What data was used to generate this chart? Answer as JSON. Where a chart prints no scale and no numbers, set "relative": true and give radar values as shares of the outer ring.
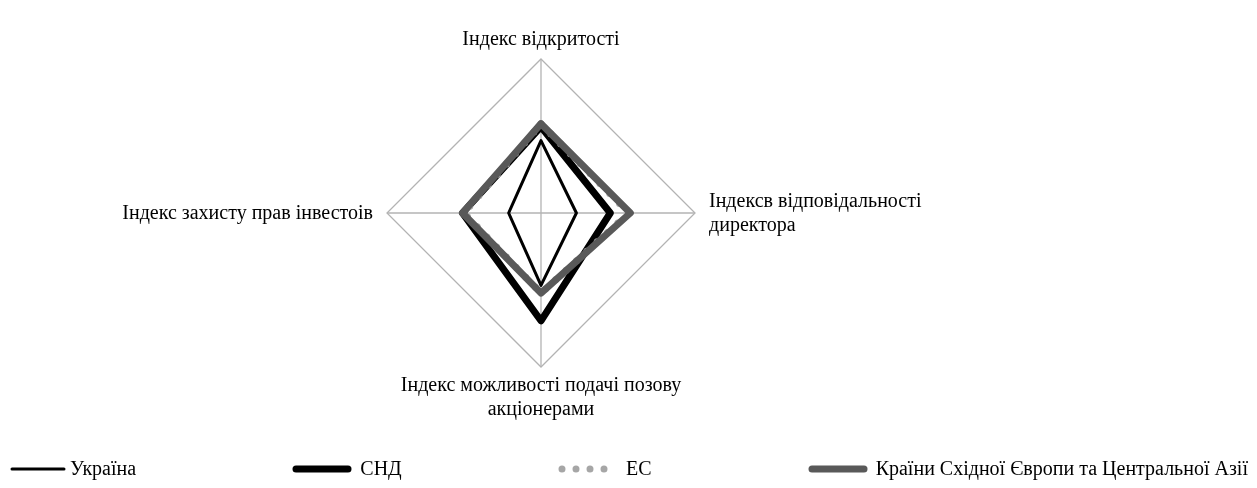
{
  "chart_data": {
    "type": "radar",
    "relative": true,
    "categories": [
      "Індекс відкритості",
      "Індексв відповідальності директора",
      "Індекс можливості подачі позову акціонерами",
      "Індекс захисту прав інвестоів"
    ],
    "series": [
      {
        "name": "Україна",
        "color": "#000000",
        "line_style": "solid",
        "values": [
          0.47,
          0.23,
          0.47,
          0.21
        ]
      },
      {
        "name": "СНД",
        "color": "#000000",
        "line_style": "solid",
        "values": [
          0.56,
          0.45,
          0.7,
          0.51
        ]
      },
      {
        "name": "ЕС",
        "color": "#a6a6a6",
        "line_style": "dotted",
        "values": [
          0.58,
          0.57,
          0.52,
          0.5
        ]
      },
      {
        "name": "Країни Східної Європи та Центральної Азії",
        "color": "#595959",
        "line_style": "solid",
        "values": [
          0.58,
          0.58,
          0.52,
          0.51
        ]
      }
    ],
    "legend": "bottom",
    "marker": "none",
    "grid": true
  }
}
